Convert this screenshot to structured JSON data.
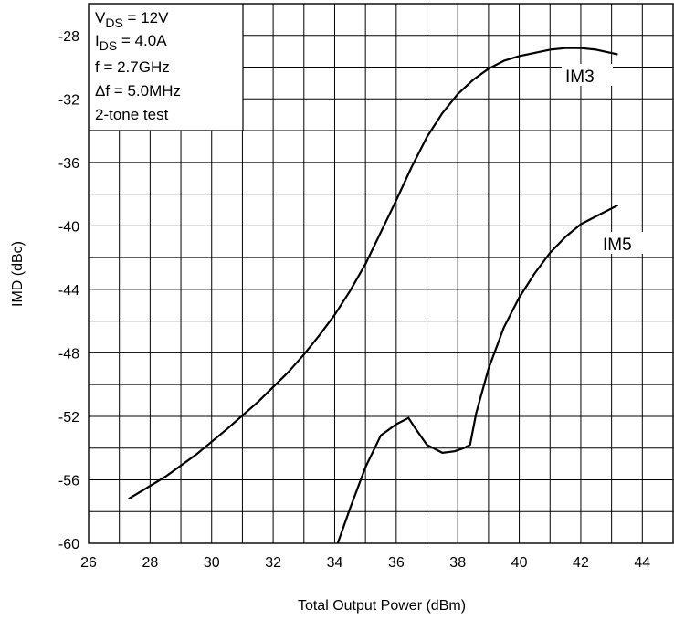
{
  "chart_data": {
    "type": "line",
    "xlabel": "Total Output Power (dBm)",
    "ylabel": "IMD (dBc)",
    "xlim": [
      26,
      45
    ],
    "ylim": [
      -60,
      -26
    ],
    "grid": true,
    "x_ticks": [
      26,
      28,
      30,
      32,
      34,
      36,
      38,
      40,
      42,
      44
    ],
    "y_ticks": [
      -28,
      -32,
      -36,
      -40,
      -44,
      -48,
      -52,
      -56,
      -60
    ],
    "conditions": [
      {
        "main": "V",
        "sub": "DS",
        "rest": " = 12V"
      },
      {
        "main": "I",
        "sub": "DS",
        "rest": " = 4.0A"
      },
      {
        "main": "f = 2.7GHz",
        "sub": "",
        "rest": ""
      },
      {
        "main": "Δf = 5.0MHz",
        "sub": "",
        "rest": ""
      },
      {
        "main": "2-tone test",
        "sub": "",
        "rest": ""
      }
    ],
    "series": [
      {
        "name": "IM3",
        "x": [
          27.3,
          28.5,
          29.5,
          30.5,
          31.5,
          32.5,
          33.0,
          33.5,
          34.0,
          34.5,
          35.0,
          35.5,
          36.0,
          36.5,
          37.0,
          37.5,
          38.0,
          38.5,
          39.0,
          39.5,
          40.0,
          40.5,
          41.0,
          41.5,
          42.0,
          42.5,
          43.2
        ],
        "y": [
          -57.2,
          -55.8,
          -54.4,
          -52.8,
          -51.1,
          -49.2,
          -48.1,
          -46.9,
          -45.6,
          -44.1,
          -42.4,
          -40.4,
          -38.4,
          -36.3,
          -34.4,
          -32.9,
          -31.7,
          -30.8,
          -30.1,
          -29.6,
          -29.3,
          -29.1,
          -28.9,
          -28.8,
          -28.8,
          -28.9,
          -29.2
        ]
      },
      {
        "name": "IM5",
        "x": [
          34.1,
          34.5,
          35.0,
          35.5,
          36.0,
          36.4,
          36.6,
          37.0,
          37.5,
          37.9,
          38.2,
          38.4,
          38.6,
          39.0,
          39.5,
          40.0,
          40.5,
          41.0,
          41.5,
          42.0,
          42.5,
          43.2
        ],
        "y": [
          -60.0,
          -57.8,
          -55.2,
          -53.2,
          -52.5,
          -52.1,
          -52.7,
          -53.8,
          -54.3,
          -54.2,
          -54.0,
          -53.8,
          -51.8,
          -49.0,
          -46.4,
          -44.5,
          -43.0,
          -41.7,
          -40.7,
          -39.9,
          -39.4,
          -38.7
        ]
      }
    ]
  }
}
